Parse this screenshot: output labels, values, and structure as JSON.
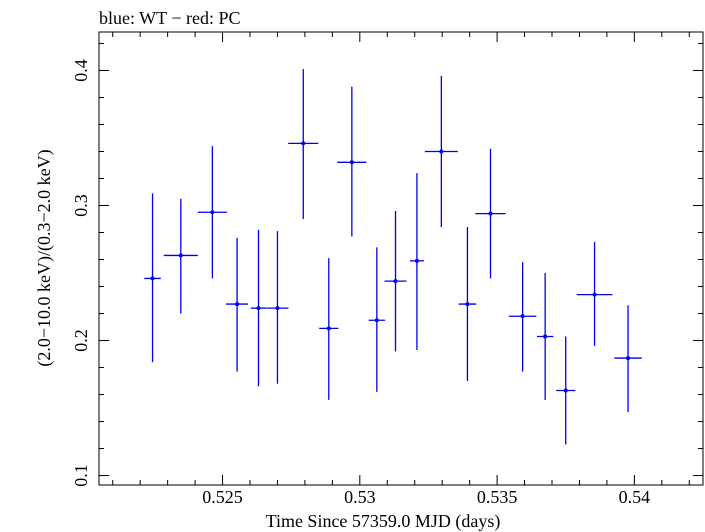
{
  "chart_data": {
    "type": "scatter",
    "title": "blue: WT − red: PC",
    "xlabel": "Time Since 57359.0 MJD (days)",
    "ylabel": "(2.0−10.0 keV)/(0.3−2.0 keV)",
    "xlim": [
      0.5205,
      0.5425
    ],
    "ylim": [
      0.093,
      0.4285
    ],
    "x_ticks": [
      0.525,
      0.53,
      0.535,
      0.54
    ],
    "x_tick_labels": [
      "0.525",
      "0.53",
      "0.535",
      "0.54"
    ],
    "y_ticks": [
      0.1,
      0.2,
      0.3,
      0.4
    ],
    "y_tick_labels": [
      "0.1",
      "0.2",
      "0.3",
      "0.4"
    ],
    "grid": false,
    "series": [
      {
        "color": "#0000ee",
        "points": [
          {
            "x": 0.52245,
            "y": 0.246,
            "xerr": 0.0003,
            "ylo": 0.184,
            "yhi": 0.309
          },
          {
            "x": 0.52348,
            "y": 0.263,
            "xerr": 0.00062,
            "ylo": 0.22,
            "yhi": 0.305
          },
          {
            "x": 0.52463,
            "y": 0.295,
            "xerr": 0.00053,
            "ylo": 0.246,
            "yhi": 0.344
          },
          {
            "x": 0.52553,
            "y": 0.227,
            "xerr": 0.0004,
            "ylo": 0.177,
            "yhi": 0.276
          },
          {
            "x": 0.52631,
            "y": 0.224,
            "xerr": 0.00028,
            "ylo": 0.166,
            "yhi": 0.282
          },
          {
            "x": 0.527,
            "y": 0.224,
            "xerr": 0.0004,
            "ylo": 0.168,
            "yhi": 0.281
          },
          {
            "x": 0.52794,
            "y": 0.346,
            "xerr": 0.00055,
            "ylo": 0.29,
            "yhi": 0.401
          },
          {
            "x": 0.52887,
            "y": 0.209,
            "xerr": 0.00035,
            "ylo": 0.156,
            "yhi": 0.261
          },
          {
            "x": 0.52971,
            "y": 0.332,
            "xerr": 0.00053,
            "ylo": 0.277,
            "yhi": 0.388
          },
          {
            "x": 0.53062,
            "y": 0.215,
            "xerr": 0.0003,
            "ylo": 0.162,
            "yhi": 0.269
          },
          {
            "x": 0.5313,
            "y": 0.244,
            "xerr": 0.0004,
            "ylo": 0.192,
            "yhi": 0.296
          },
          {
            "x": 0.53208,
            "y": 0.259,
            "xerr": 0.00025,
            "ylo": 0.193,
            "yhi": 0.324
          },
          {
            "x": 0.53297,
            "y": 0.34,
            "xerr": 0.0006,
            "ylo": 0.284,
            "yhi": 0.396
          },
          {
            "x": 0.53392,
            "y": 0.227,
            "xerr": 0.00032,
            "ylo": 0.17,
            "yhi": 0.284
          },
          {
            "x": 0.53476,
            "y": 0.294,
            "xerr": 0.00055,
            "ylo": 0.246,
            "yhi": 0.342
          },
          {
            "x": 0.53593,
            "y": 0.218,
            "xerr": 0.0005,
            "ylo": 0.177,
            "yhi": 0.258
          },
          {
            "x": 0.53675,
            "y": 0.203,
            "xerr": 0.0003,
            "ylo": 0.156,
            "yhi": 0.25
          },
          {
            "x": 0.5375,
            "y": 0.163,
            "xerr": 0.00035,
            "ylo": 0.123,
            "yhi": 0.203
          },
          {
            "x": 0.53855,
            "y": 0.234,
            "xerr": 0.00065,
            "ylo": 0.196,
            "yhi": 0.273
          },
          {
            "x": 0.53977,
            "y": 0.187,
            "xerr": 0.0005,
            "ylo": 0.147,
            "yhi": 0.226
          }
        ]
      }
    ]
  }
}
